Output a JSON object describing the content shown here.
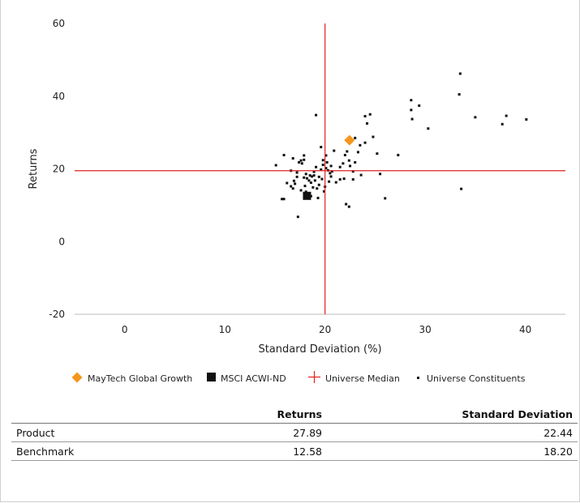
{
  "chart_data": {
    "type": "scatter",
    "xlabel": "Standard Deviation (%)",
    "ylabel": "Returns",
    "xlim": [
      -5,
      44
    ],
    "ylim": [
      -20,
      60
    ],
    "xticks": [
      0,
      10,
      20,
      30,
      40
    ],
    "yticks": [
      -20,
      0,
      20,
      40,
      60
    ],
    "grid": false,
    "legend_position": "bottom",
    "median": {
      "x": 20.0,
      "y": 19.5
    },
    "series": [
      {
        "name": "MayTech Global Growth",
        "marker": "diamond",
        "color": "#f5961e",
        "points": [
          [
            22.44,
            27.89
          ]
        ]
      },
      {
        "name": "MSCI ACWI-ND",
        "marker": "square",
        "color": "#111111",
        "points": [
          [
            18.2,
            12.58
          ]
        ]
      },
      {
        "name": "Universe Median",
        "marker": "cross",
        "color": "#e02020",
        "points": [
          [
            20.0,
            19.5
          ]
        ]
      },
      {
        "name": "Universe Constituents",
        "marker": "dot",
        "color": "#111111",
        "points": [
          [
            15.1,
            21.0
          ],
          [
            15.9,
            23.8
          ],
          [
            16.8,
            22.9
          ],
          [
            16.2,
            16.1
          ],
          [
            16.6,
            15.2
          ],
          [
            16.8,
            14.6
          ],
          [
            17.0,
            15.9
          ],
          [
            17.2,
            17.8
          ],
          [
            17.4,
            21.8
          ],
          [
            17.6,
            22.3
          ],
          [
            17.7,
            21.5
          ],
          [
            17.9,
            23.7
          ],
          [
            17.9,
            22.5
          ],
          [
            18.1,
            18.6
          ],
          [
            18.2,
            17.4
          ],
          [
            18.4,
            16.8
          ],
          [
            18.6,
            16.2
          ],
          [
            18.7,
            17.9
          ],
          [
            18.9,
            19.2
          ],
          [
            18.9,
            18.2
          ],
          [
            19.1,
            20.5
          ],
          [
            19.0,
            16.8
          ],
          [
            19.2,
            14.6
          ],
          [
            19.4,
            15.6
          ],
          [
            19.6,
            19.8
          ],
          [
            19.8,
            21.1
          ],
          [
            19.8,
            22.4
          ],
          [
            20.1,
            23.7
          ],
          [
            20.2,
            21.8
          ],
          [
            20.1,
            20.2
          ],
          [
            20.3,
            19.6
          ],
          [
            20.5,
            18.8
          ],
          [
            20.6,
            17.9
          ],
          [
            20.4,
            16.5
          ],
          [
            20.6,
            20.8
          ],
          [
            20.9,
            25.0
          ],
          [
            21.5,
            20.5
          ],
          [
            21.8,
            21.5
          ],
          [
            22.0,
            23.8
          ],
          [
            22.2,
            24.8
          ],
          [
            22.4,
            22.3
          ],
          [
            22.5,
            20.8
          ],
          [
            22.8,
            19.3
          ],
          [
            23.0,
            21.8
          ],
          [
            23.3,
            24.6
          ],
          [
            23.5,
            26.5
          ],
          [
            23.6,
            18.3
          ],
          [
            24.0,
            34.5
          ],
          [
            24.2,
            32.5
          ],
          [
            24.5,
            35.0
          ],
          [
            24.8,
            28.8
          ],
          [
            25.2,
            24.2
          ],
          [
            25.5,
            18.6
          ],
          [
            26.0,
            11.9
          ],
          [
            19.1,
            34.8
          ],
          [
            19.6,
            26.0
          ],
          [
            15.9,
            11.7
          ],
          [
            15.7,
            11.7
          ],
          [
            17.3,
            6.8
          ],
          [
            18.1,
            13.7
          ],
          [
            18.6,
            12.5
          ],
          [
            19.3,
            12.0
          ],
          [
            19.9,
            13.8
          ],
          [
            21.1,
            16.3
          ],
          [
            21.9,
            17.3
          ],
          [
            22.1,
            10.3
          ],
          [
            22.4,
            9.6
          ],
          [
            22.8,
            17.1
          ],
          [
            27.3,
            23.8
          ],
          [
            28.6,
            38.9
          ],
          [
            28.6,
            36.2
          ],
          [
            28.7,
            33.7
          ],
          [
            29.4,
            37.4
          ],
          [
            30.3,
            31.1
          ],
          [
            33.5,
            46.2
          ],
          [
            33.4,
            40.5
          ],
          [
            33.6,
            14.5
          ],
          [
            35.0,
            34.2
          ],
          [
            37.7,
            32.3
          ],
          [
            38.1,
            34.6
          ],
          [
            40.1,
            33.6
          ],
          [
            16.6,
            19.5
          ],
          [
            17.2,
            19.0
          ],
          [
            17.9,
            17.6
          ],
          [
            18.5,
            18.2
          ],
          [
            19.7,
            17.2
          ],
          [
            20.7,
            19.3
          ],
          [
            21.5,
            17.1
          ],
          [
            19.4,
            17.8
          ],
          [
            18.0,
            15.3
          ],
          [
            16.9,
            16.7
          ],
          [
            17.6,
            14.1
          ],
          [
            18.8,
            14.9
          ],
          [
            20.0,
            15.1
          ],
          [
            23.0,
            28.5
          ],
          [
            24.0,
            27.2
          ],
          [
            18.3,
            12.0
          ],
          [
            18.0,
            12.9
          ]
        ]
      }
    ]
  },
  "legend": {
    "items": [
      {
        "label": "MayTech Global Growth",
        "icon": "orange-diamond-icon"
      },
      {
        "label": "MSCI ACWI-ND",
        "icon": "black-square-icon"
      },
      {
        "label": "Universe Median",
        "icon": "red-cross-icon"
      },
      {
        "label": "Universe Constituents",
        "icon": "black-dot-icon"
      }
    ]
  },
  "table": {
    "headers": [
      "",
      "Returns",
      "Standard Deviation"
    ],
    "rows": [
      {
        "label": "Product",
        "returns": "27.89",
        "std_dev": "22.44"
      },
      {
        "label": "Benchmark",
        "returns": "12.58",
        "std_dev": "18.20"
      }
    ]
  },
  "colors": {
    "median_line": "#e02020",
    "product": "#f5961e",
    "benchmark": "#111111",
    "axis": "#bbbbbb"
  }
}
